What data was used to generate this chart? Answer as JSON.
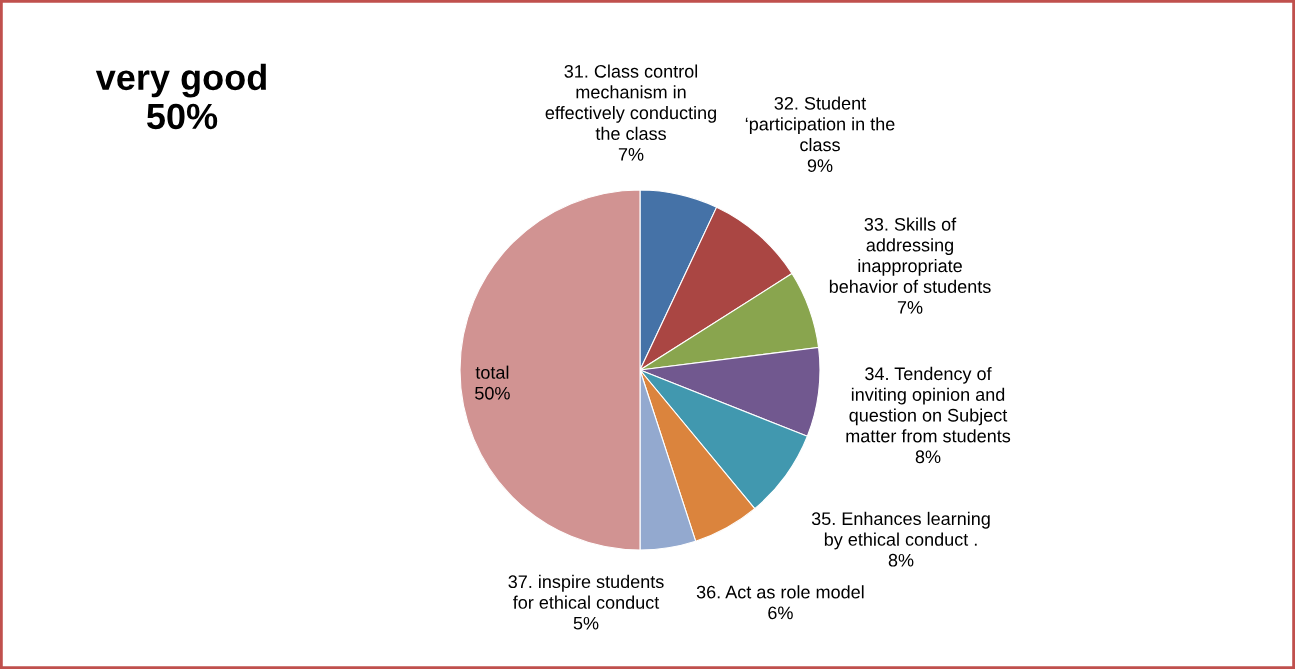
{
  "chart_data": {
    "type": "pie",
    "title": "very good\n50%",
    "categories": [
      "31. Class control\nmechanism in\neffectively conducting\nthe class",
      "32. Student\n‘participation in the\nclass",
      "33. Skills of\naddressing\ninappropriate\nbehavior of students",
      "34. Tendency of\ninviting opinion and\nquestion on Subject\nmatter from students",
      "35. Enhances learning\nby ethical conduct .",
      "36. Act as role model",
      "37. inspire students\nfor ethical conduct",
      "total"
    ],
    "values": [
      7,
      9,
      7,
      8,
      8,
      6,
      5,
      50
    ],
    "value_labels": [
      "7%",
      "9%",
      "7%",
      "8%",
      "8%",
      "6%",
      "5%",
      "50%"
    ],
    "colors": [
      "#4572a7",
      "#aa4643",
      "#89a54e",
      "#71588f",
      "#4198af",
      "#db843d",
      "#93a9cf",
      "#d19392"
    ],
    "legend": false
  }
}
